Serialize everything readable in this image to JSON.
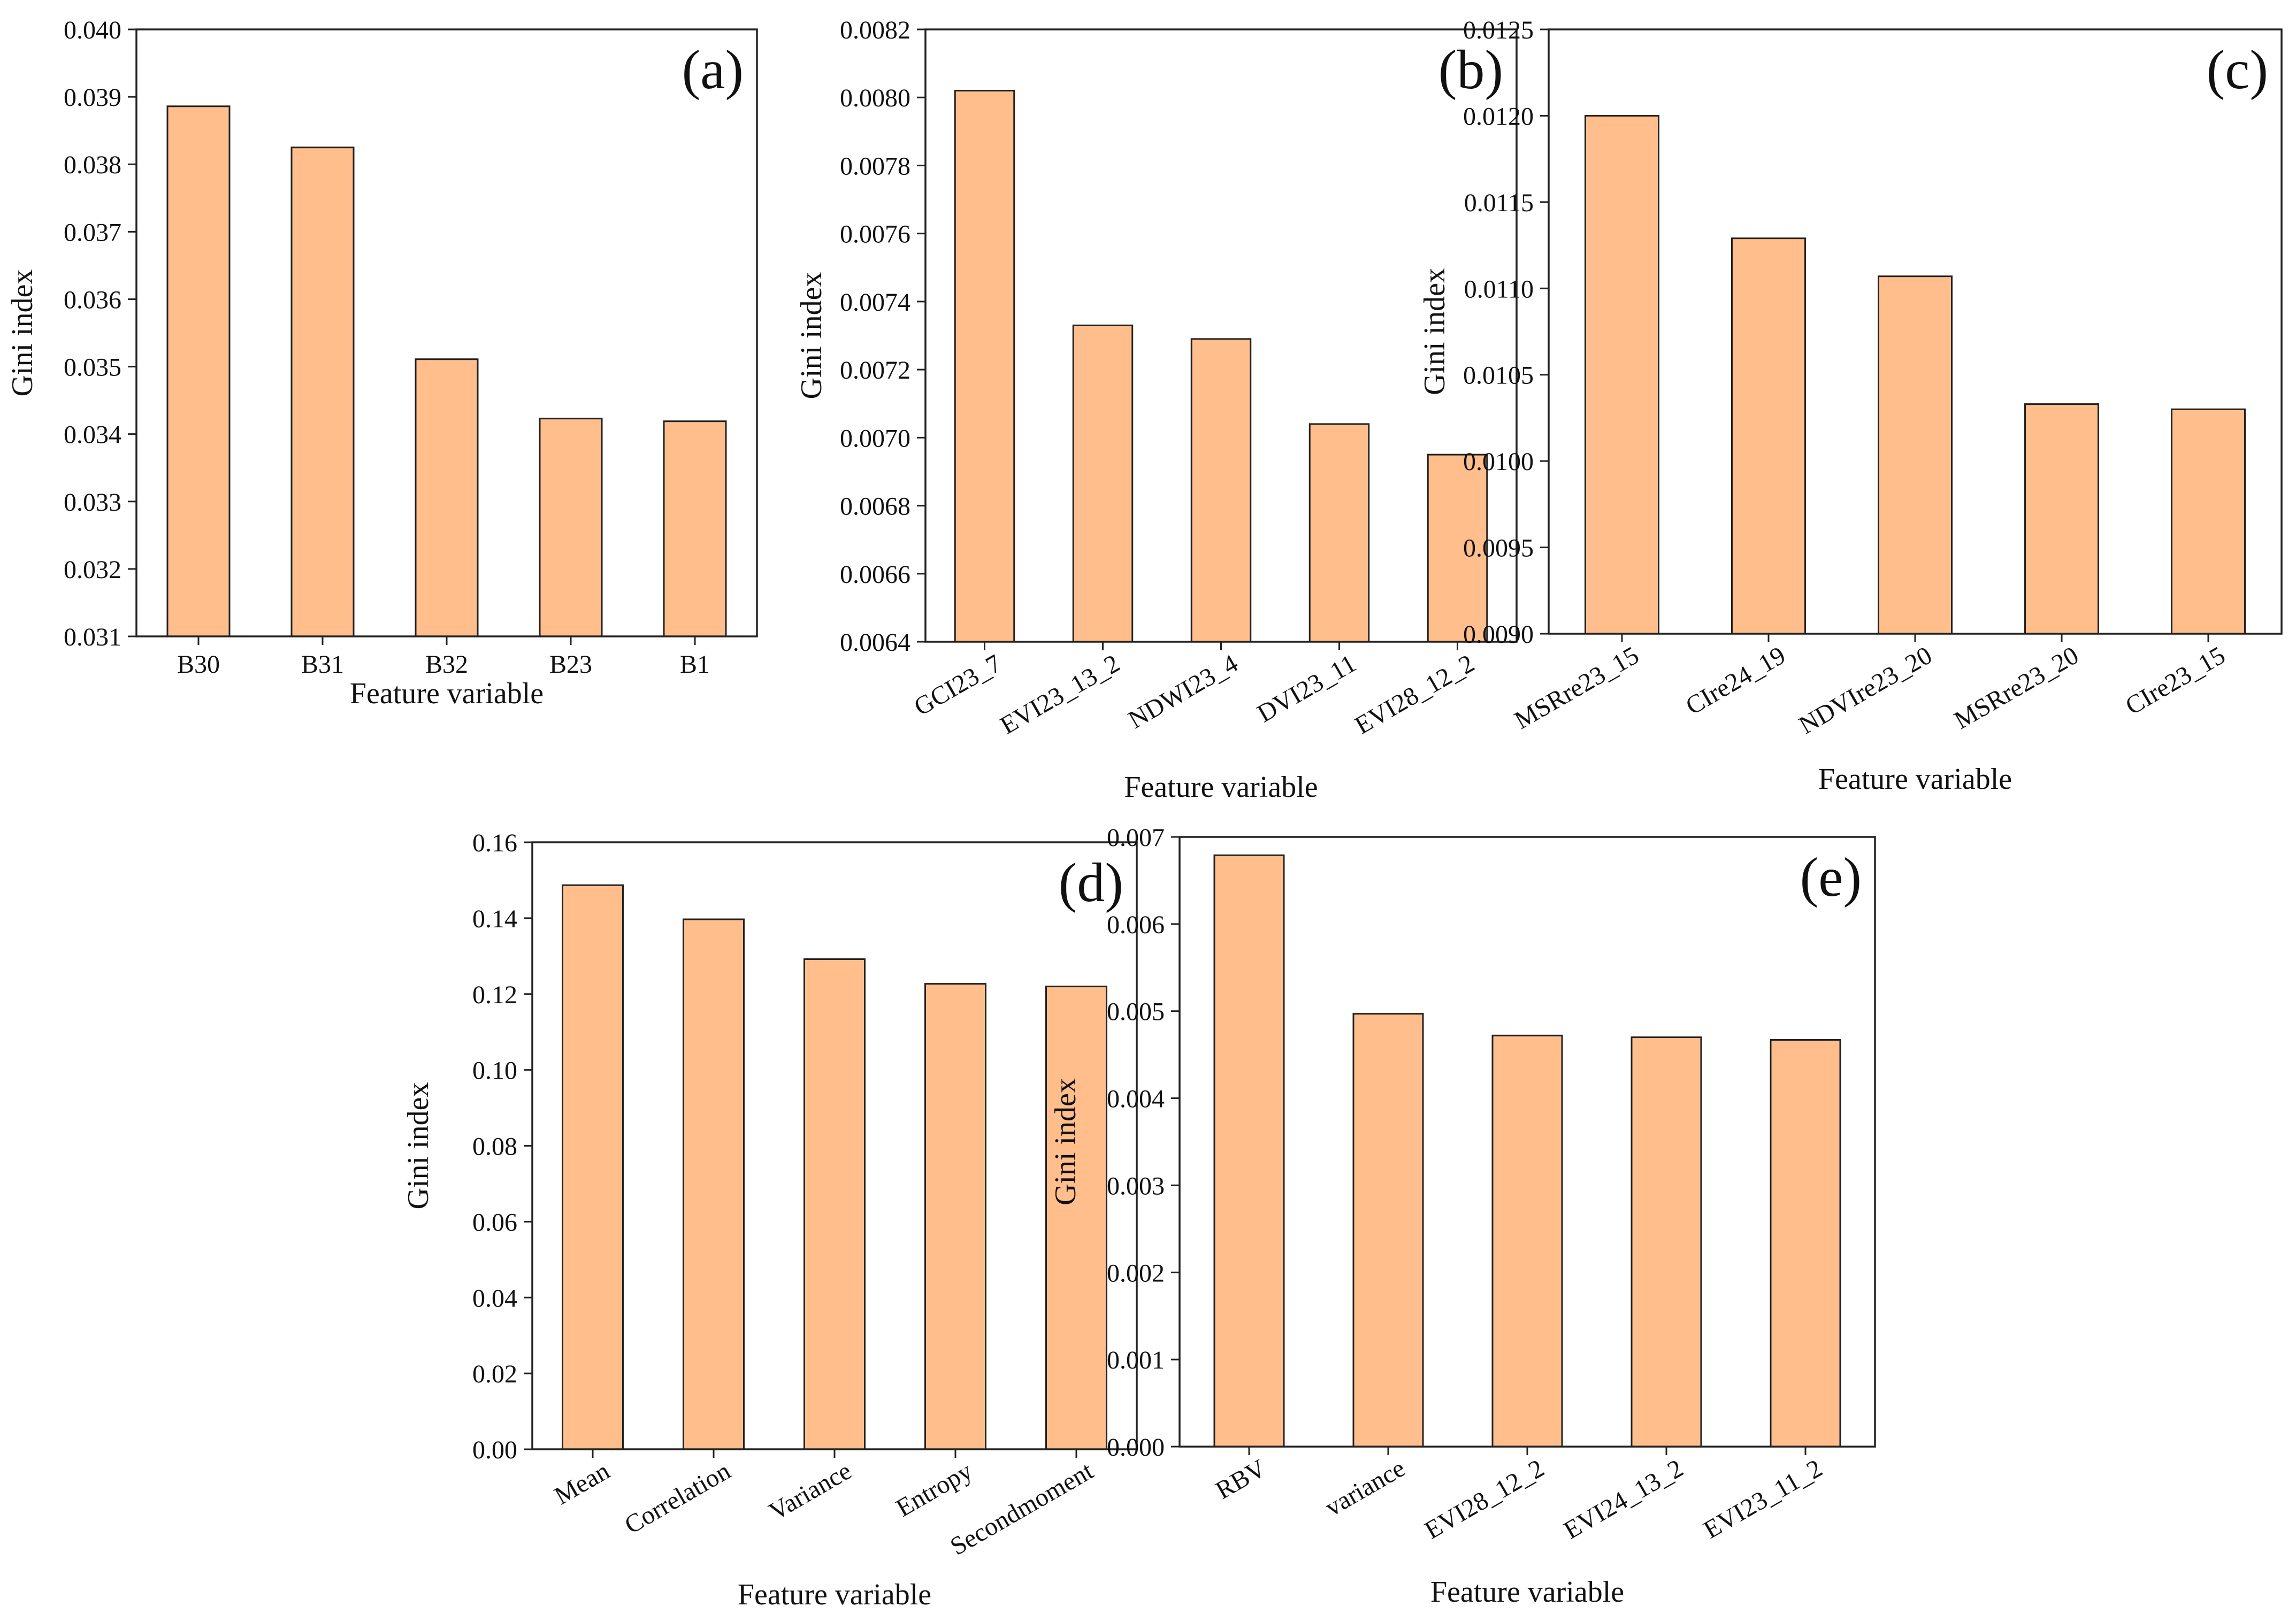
{
  "chart_data": [
    {
      "type": "bar",
      "panel_label": "(a)",
      "categories": [
        "B30",
        "B31",
        "B32",
        "B23",
        "B1"
      ],
      "values": [
        0.03886,
        0.03825,
        0.03511,
        0.03423,
        0.03419
      ],
      "xlabel": "Feature variable",
      "ylabel": "Gini index",
      "ylim": [
        0.031,
        0.04
      ],
      "yticks": [
        "0.031",
        "0.032",
        "0.033",
        "0.034",
        "0.035",
        "0.036",
        "0.037",
        "0.038",
        "0.039",
        "0.040"
      ],
      "bar_color": "#FFBE8C",
      "rotated_ticks": false
    },
    {
      "type": "bar",
      "panel_label": "(b)",
      "categories": [
        "GCI23_7",
        "EVI23_13_2",
        "NDWI23_4",
        "DVI23_11",
        "EVI28_12_2"
      ],
      "values": [
        0.00802,
        0.00733,
        0.00729,
        0.00704,
        0.00695
      ],
      "xlabel": "Feature variable",
      "ylabel": "Gini index",
      "ylim": [
        0.0064,
        0.0082
      ],
      "yticks": [
        "0.0064",
        "0.0066",
        "0.0068",
        "0.0070",
        "0.0072",
        "0.0074",
        "0.0076",
        "0.0078",
        "0.0080",
        "0.0082"
      ],
      "bar_color": "#FFBE8C",
      "rotated_ticks": true
    },
    {
      "type": "bar",
      "panel_label": "(c)",
      "categories": [
        "MSRre23_15",
        "CIre24_19",
        "NDVIre23_20",
        "MSRre23_20",
        "CIre23_15"
      ],
      "values": [
        0.012,
        0.01129,
        0.01107,
        0.01033,
        0.0103
      ],
      "xlabel": "Feature variable",
      "ylabel": "Gini index",
      "ylim": [
        0.009,
        0.0125
      ],
      "yticks": [
        "0.0090",
        "0.0095",
        "0.0100",
        "0.0105",
        "0.0110",
        "0.0115",
        "0.0120",
        "0.0125"
      ],
      "bar_color": "#FFBE8C",
      "rotated_ticks": true
    },
    {
      "type": "bar",
      "panel_label": "(d)",
      "categories": [
        "Mean",
        "Correlation",
        "Variance",
        "Entropy",
        "Secondmoment"
      ],
      "values": [
        0.1487,
        0.1397,
        0.1292,
        0.1227,
        0.122
      ],
      "xlabel": "Feature variable",
      "ylabel": "Gini index",
      "ylim": [
        0.0,
        0.16
      ],
      "yticks": [
        "0.00",
        "0.02",
        "0.04",
        "0.06",
        "0.08",
        "0.10",
        "0.12",
        "0.14",
        "0.16"
      ],
      "bar_color": "#FFBE8C",
      "rotated_ticks": true
    },
    {
      "type": "bar",
      "panel_label": "(e)",
      "categories": [
        "RBV",
        "variance",
        "EVI28_12_2",
        "EVI24_13_2",
        "EVI23_11_2"
      ],
      "values": [
        0.00679,
        0.00497,
        0.00472,
        0.0047,
        0.00467
      ],
      "xlabel": "Feature variable",
      "ylabel": "Gini index",
      "ylim": [
        0.0,
        0.007
      ],
      "yticks": [
        "0.000",
        "0.001",
        "0.002",
        "0.003",
        "0.004",
        "0.005",
        "0.006",
        "0.007"
      ],
      "bar_color": "#FFBE8C",
      "rotated_ticks": true
    }
  ]
}
